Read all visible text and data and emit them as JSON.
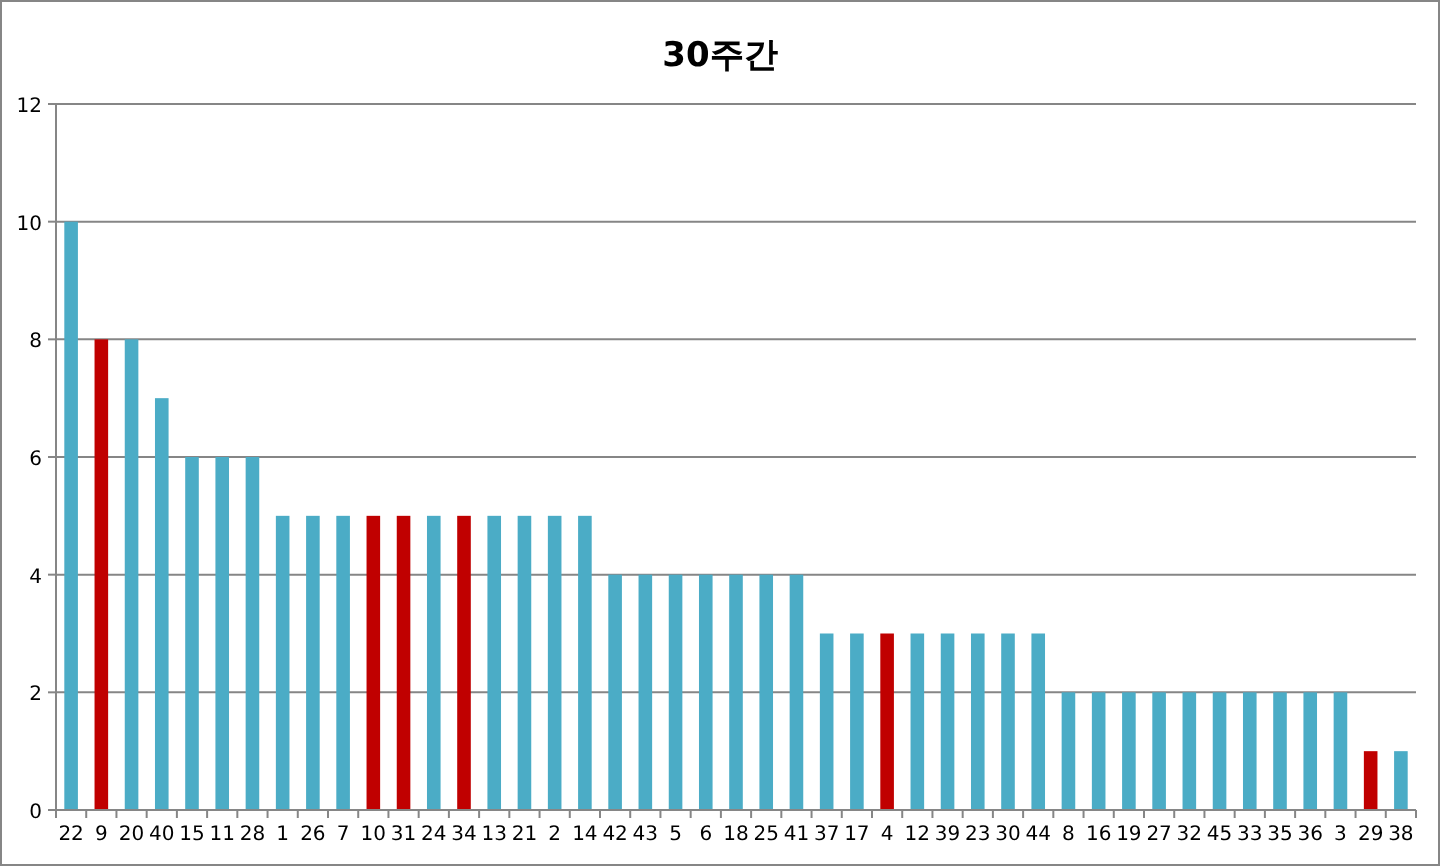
{
  "chart_data": {
    "type": "bar",
    "title": "30주간",
    "categories": [
      "22",
      "9",
      "20",
      "40",
      "15",
      "11",
      "28",
      "1",
      "26",
      "7",
      "10",
      "31",
      "24",
      "34",
      "13",
      "21",
      "2",
      "14",
      "42",
      "43",
      "5",
      "6",
      "18",
      "25",
      "41",
      "37",
      "17",
      "4",
      "12",
      "39",
      "23",
      "30",
      "44",
      "8",
      "16",
      "19",
      "27",
      "32",
      "45",
      "33",
      "35",
      "36",
      "3",
      "29",
      "38"
    ],
    "values": [
      10,
      8,
      8,
      7,
      6,
      6,
      6,
      5,
      5,
      5,
      5,
      5,
      5,
      5,
      5,
      5,
      5,
      5,
      4,
      4,
      4,
      4,
      4,
      4,
      4,
      3,
      3,
      3,
      3,
      3,
      3,
      3,
      3,
      2,
      2,
      2,
      2,
      2,
      2,
      2,
      2,
      2,
      2,
      1,
      1
    ],
    "colors": [
      "#4bacc6",
      "#c00000",
      "#4bacc6",
      "#4bacc6",
      "#4bacc6",
      "#4bacc6",
      "#4bacc6",
      "#4bacc6",
      "#4bacc6",
      "#4bacc6",
      "#c00000",
      "#c00000",
      "#4bacc6",
      "#c00000",
      "#4bacc6",
      "#4bacc6",
      "#4bacc6",
      "#4bacc6",
      "#4bacc6",
      "#4bacc6",
      "#4bacc6",
      "#4bacc6",
      "#4bacc6",
      "#4bacc6",
      "#4bacc6",
      "#4bacc6",
      "#4bacc6",
      "#c00000",
      "#4bacc6",
      "#4bacc6",
      "#4bacc6",
      "#4bacc6",
      "#4bacc6",
      "#4bacc6",
      "#4bacc6",
      "#4bacc6",
      "#4bacc6",
      "#4bacc6",
      "#4bacc6",
      "#4bacc6",
      "#4bacc6",
      "#4bacc6",
      "#4bacc6",
      "#c00000",
      "#4bacc6"
    ],
    "ylim": [
      0,
      12
    ],
    "yticks": [
      0,
      2,
      4,
      6,
      8,
      10,
      12
    ],
    "grid": "y"
  }
}
